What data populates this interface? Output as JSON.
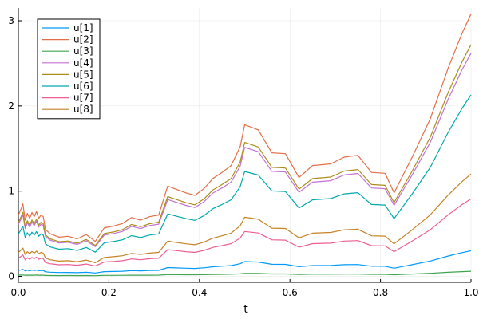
{
  "chart_data": {
    "type": "line",
    "title": "",
    "xlabel": "t",
    "ylabel": "",
    "xlim": [
      0,
      1
    ],
    "ylim": [
      -0.07,
      3.15
    ],
    "xticks": [
      0.0,
      0.2,
      0.4,
      0.6,
      0.8,
      1.0
    ],
    "xtick_labels": [
      "0.0",
      "0.2",
      "0.4",
      "0.6",
      "0.8",
      "1.0"
    ],
    "yticks": [
      0,
      1,
      2,
      3
    ],
    "ytick_labels": [
      "0",
      "1",
      "2",
      "3"
    ],
    "grid": true,
    "legend_position": "top-left",
    "x": [
      0.0,
      0.005,
      0.01,
      0.015,
      0.02,
      0.025,
      0.03,
      0.035,
      0.04,
      0.045,
      0.05,
      0.055,
      0.06,
      0.07,
      0.09,
      0.11,
      0.13,
      0.15,
      0.17,
      0.19,
      0.21,
      0.23,
      0.25,
      0.27,
      0.29,
      0.31,
      0.33,
      0.35,
      0.37,
      0.39,
      0.41,
      0.43,
      0.45,
      0.47,
      0.49,
      0.5,
      0.53,
      0.56,
      0.59,
      0.62,
      0.65,
      0.69,
      0.72,
      0.75,
      0.78,
      0.81,
      0.83,
      0.87,
      0.91,
      0.95,
      0.98,
      1.0
    ],
    "series": [
      {
        "name": "u[1]",
        "color": "#009AFA",
        "scale": 0.0975
      },
      {
        "name": "u[2]",
        "color": "#E36F47",
        "scale": 1.0
      },
      {
        "name": "u[3]",
        "color": "#3EA44E",
        "scale": 0.0195
      },
      {
        "name": "u[4]",
        "color": "#C371D2",
        "scale": 0.8505
      },
      {
        "name": "u[5]",
        "color": "#AC8D18",
        "scale": 0.8829
      },
      {
        "name": "u[6]",
        "color": "#00A9AD",
        "scale": 0.6915
      },
      {
        "name": "u[7]",
        "color": "#ED5E93",
        "scale": 0.2955
      },
      {
        "name": "u[8]",
        "color": "#C68225",
        "scale": 0.39
      }
    ],
    "base_values": [
      0.72,
      0.78,
      0.85,
      0.66,
      0.74,
      0.68,
      0.75,
      0.7,
      0.76,
      0.68,
      0.72,
      0.7,
      0.55,
      0.5,
      0.46,
      0.47,
      0.44,
      0.49,
      0.41,
      0.57,
      0.59,
      0.62,
      0.69,
      0.66,
      0.7,
      0.72,
      1.06,
      1.02,
      0.98,
      0.95,
      1.03,
      1.15,
      1.22,
      1.3,
      1.52,
      1.78,
      1.72,
      1.45,
      1.44,
      1.16,
      1.3,
      1.32,
      1.4,
      1.42,
      1.22,
      1.21,
      0.98,
      1.4,
      1.85,
      2.45,
      2.85,
      3.08
    ]
  }
}
